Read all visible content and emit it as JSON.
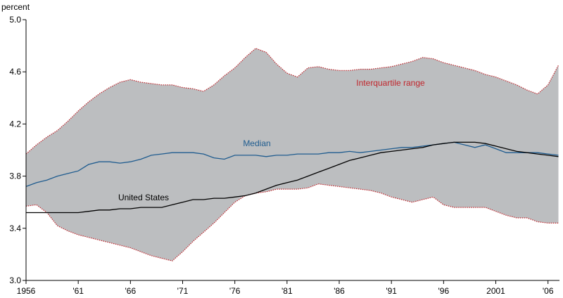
{
  "chart_data": {
    "type": "line",
    "y_label": "percent",
    "x": [
      1956,
      1957,
      1958,
      1959,
      1960,
      1961,
      1962,
      1963,
      1964,
      1965,
      1966,
      1967,
      1968,
      1969,
      1970,
      1971,
      1972,
      1973,
      1974,
      1975,
      1976,
      1977,
      1978,
      1979,
      1980,
      1981,
      1982,
      1983,
      1984,
      1985,
      1986,
      1987,
      1988,
      1989,
      1990,
      1991,
      1992,
      1993,
      1994,
      1995,
      1996,
      1997,
      1998,
      1999,
      2000,
      2001,
      2002,
      2003,
      2004,
      2005,
      2006,
      2007
    ],
    "xlim": [
      1956,
      2007.1
    ],
    "xticks": [
      1956,
      {
        "value": 1961,
        "label": "'61"
      },
      {
        "value": 1966,
        "label": "'66"
      },
      {
        "value": 1971,
        "label": "'71"
      },
      {
        "value": 1976,
        "label": "'76"
      },
      {
        "value": 1981,
        "label": "'81"
      },
      {
        "value": 1986,
        "label": "'86"
      },
      {
        "value": 1991,
        "label": "'91"
      },
      {
        "value": 1996,
        "label": "'96"
      },
      2001,
      {
        "value": 2006,
        "label": "'06"
      }
    ],
    "ylim": [
      3,
      5
    ],
    "yticks": [
      {
        "value": 3,
        "label": "3.0"
      },
      3.4,
      3.8,
      4.2,
      4.6,
      {
        "value": 5,
        "label": "5.0"
      }
    ],
    "band": {
      "name": "Interquartile range",
      "color": "#bcbec0",
      "edge_color": "#c0272d",
      "label_color": "#c0272d",
      "upper": [
        3.97,
        4.04,
        4.1,
        4.15,
        4.22,
        4.3,
        4.37,
        4.43,
        4.48,
        4.52,
        4.54,
        4.52,
        4.51,
        4.5,
        4.5,
        4.48,
        4.47,
        4.45,
        4.5,
        4.57,
        4.63,
        4.71,
        4.78,
        4.75,
        4.66,
        4.59,
        4.56,
        4.63,
        4.64,
        4.62,
        4.61,
        4.61,
        4.62,
        4.62,
        4.63,
        4.64,
        4.66,
        4.68,
        4.71,
        4.7,
        4.67,
        4.65,
        4.63,
        4.61,
        4.58,
        4.56,
        4.53,
        4.5,
        4.46,
        4.43,
        4.5,
        4.65
      ],
      "lower": [
        3.57,
        3.58,
        3.52,
        3.42,
        3.38,
        3.35,
        3.33,
        3.31,
        3.29,
        3.27,
        3.25,
        3.22,
        3.19,
        3.17,
        3.15,
        3.22,
        3.3,
        3.37,
        3.44,
        3.52,
        3.6,
        3.65,
        3.67,
        3.68,
        3.7,
        3.7,
        3.7,
        3.71,
        3.74,
        3.73,
        3.72,
        3.71,
        3.7,
        3.69,
        3.67,
        3.64,
        3.62,
        3.6,
        3.62,
        3.64,
        3.58,
        3.56,
        3.56,
        3.56,
        3.56,
        3.53,
        3.5,
        3.48,
        3.48,
        3.45,
        3.44,
        3.44
      ]
    },
    "series": [
      {
        "name": "Median",
        "color": "#1f5c8f",
        "values": [
          3.72,
          3.75,
          3.77,
          3.8,
          3.82,
          3.84,
          3.89,
          3.91,
          3.91,
          3.9,
          3.91,
          3.93,
          3.96,
          3.97,
          3.98,
          3.98,
          3.98,
          3.97,
          3.94,
          3.93,
          3.96,
          3.96,
          3.96,
          3.95,
          3.96,
          3.96,
          3.97,
          3.97,
          3.97,
          3.98,
          3.98,
          3.99,
          3.98,
          3.99,
          4.0,
          4.01,
          4.02,
          4.02,
          4.03,
          4.04,
          4.05,
          4.06,
          4.04,
          4.02,
          4.04,
          4.01,
          3.98,
          3.98,
          3.98,
          3.98,
          3.97,
          3.96
        ]
      },
      {
        "name": "United States",
        "color": "#000000",
        "values": [
          3.52,
          3.52,
          3.52,
          3.52,
          3.52,
          3.52,
          3.53,
          3.54,
          3.54,
          3.55,
          3.55,
          3.56,
          3.56,
          3.56,
          3.58,
          3.6,
          3.62,
          3.62,
          3.63,
          3.63,
          3.64,
          3.65,
          3.67,
          3.7,
          3.73,
          3.75,
          3.77,
          3.8,
          3.83,
          3.86,
          3.89,
          3.92,
          3.94,
          3.96,
          3.98,
          3.99,
          4.0,
          4.01,
          4.02,
          4.04,
          4.05,
          4.06,
          4.06,
          4.06,
          4.05,
          4.03,
          4.01,
          3.99,
          3.98,
          3.97,
          3.96,
          3.95
        ]
      }
    ]
  }
}
